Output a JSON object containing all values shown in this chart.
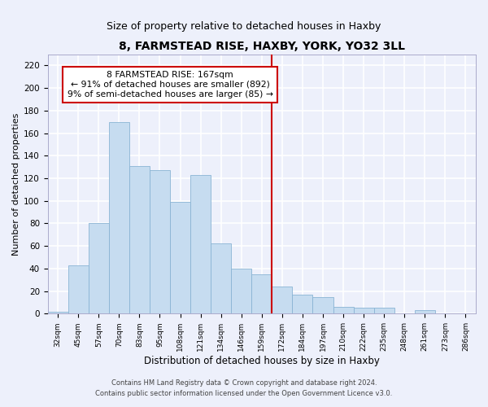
{
  "title": "8, FARMSTEAD RISE, HAXBY, YORK, YO32 3LL",
  "subtitle": "Size of property relative to detached houses in Haxby",
  "xlabel": "Distribution of detached houses by size in Haxby",
  "ylabel": "Number of detached properties",
  "bar_labels": [
    "32sqm",
    "45sqm",
    "57sqm",
    "70sqm",
    "83sqm",
    "95sqm",
    "108sqm",
    "121sqm",
    "134sqm",
    "146sqm",
    "159sqm",
    "172sqm",
    "184sqm",
    "197sqm",
    "210sqm",
    "222sqm",
    "235sqm",
    "248sqm",
    "261sqm",
    "273sqm",
    "286sqm"
  ],
  "bar_values": [
    2,
    43,
    80,
    170,
    131,
    127,
    99,
    123,
    62,
    40,
    35,
    24,
    17,
    15,
    6,
    5,
    5,
    0,
    3,
    0,
    0
  ],
  "bar_color": "#c6dcf0",
  "bar_edge_color": "#8ab4d4",
  "highlight_line_color": "#cc0000",
  "annotation_title": "8 FARMSTEAD RISE: 167sqm",
  "annotation_line1": "← 91% of detached houses are smaller (892)",
  "annotation_line2": "9% of semi-detached houses are larger (85) →",
  "annotation_box_color": "#ffffff",
  "annotation_box_edge_color": "#cc0000",
  "ylim": [
    0,
    230
  ],
  "yticks": [
    0,
    20,
    40,
    60,
    80,
    100,
    120,
    140,
    160,
    180,
    200,
    220
  ],
  "footer1": "Contains HM Land Registry data © Crown copyright and database right 2024.",
  "footer2": "Contains public sector information licensed under the Open Government Licence v3.0.",
  "bg_color": "#edf0fb",
  "grid_color": "#ffffff",
  "title_fontsize": 10,
  "subtitle_fontsize": 9
}
